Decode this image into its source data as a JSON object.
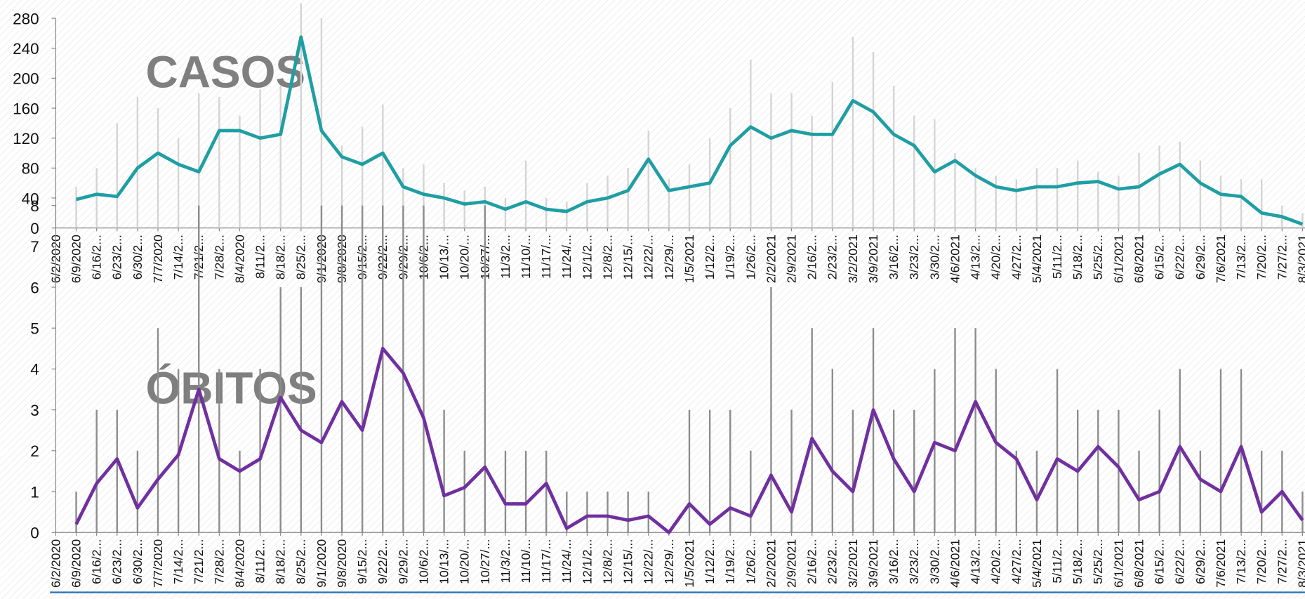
{
  "chart_data": [
    {
      "type": "bar_line",
      "title": "CASOS",
      "categories": [
        "6/2/2020",
        "6/9/2020",
        "6/16/2...",
        "6/23/2...",
        "6/30/2...",
        "7/7/2020",
        "7/14/2...",
        "7/21/2...",
        "7/28/2...",
        "8/4/2020",
        "8/11/2...",
        "8/18/2...",
        "8/25/2...",
        "9/1/2020",
        "9/8/2020",
        "9/15/2...",
        "9/22/2...",
        "9/29/2...",
        "10/6/2...",
        "10/13/...",
        "10/20/...",
        "10/27/...",
        "11/3/2...",
        "11/10/...",
        "11/17/...",
        "11/24/...",
        "12/1/2...",
        "12/8/2...",
        "12/15/...",
        "12/22/...",
        "12/29/...",
        "1/5/2021",
        "1/12/2...",
        "1/19/2...",
        "1/26/2...",
        "2/2/2021",
        "2/9/2021",
        "2/16/2...",
        "2/23/2...",
        "3/2/2021",
        "3/9/2021",
        "3/16/2...",
        "3/23/2...",
        "3/30/2...",
        "4/6/2021",
        "4/13/2...",
        "4/20/2...",
        "4/27/2...",
        "5/4/2021",
        "5/11/2...",
        "5/18/2...",
        "5/25/2...",
        "6/1/2021",
        "6/8/2021",
        "6/15/2...",
        "6/22/2...",
        "6/29/2...",
        "7/6/2021",
        "7/13/2...",
        "7/20/2...",
        "7/27/2...",
        "8/3/2021"
      ],
      "ylim": [
        0,
        280
      ],
      "yticks": [
        0,
        40,
        80,
        120,
        160,
        200,
        240,
        280
      ],
      "series": [
        {
          "type": "bar",
          "color": "#d4d4d4",
          "values": [
            null,
            55,
            80,
            140,
            175,
            160,
            120,
            180,
            175,
            150,
            185,
            190,
            300,
            280,
            110,
            135,
            165,
            80,
            85,
            60,
            50,
            55,
            40,
            90,
            40,
            35,
            60,
            70,
            80,
            130,
            65,
            85,
            120,
            160,
            225,
            180,
            180,
            150,
            195,
            255,
            235,
            190,
            150,
            145,
            100,
            80,
            70,
            65,
            80,
            80,
            90,
            75,
            70,
            100,
            110,
            115,
            90,
            70,
            65,
            65,
            30,
            20
          ]
        },
        {
          "type": "line",
          "color": "#1f9ea3",
          "values": [
            null,
            38,
            45,
            42,
            80,
            100,
            85,
            75,
            130,
            130,
            120,
            125,
            255,
            130,
            95,
            85,
            100,
            55,
            45,
            40,
            32,
            35,
            25,
            35,
            25,
            22,
            35,
            40,
            50,
            92,
            50,
            55,
            60,
            110,
            135,
            120,
            130,
            125,
            125,
            170,
            155,
            125,
            110,
            75,
            90,
            70,
            55,
            50,
            55,
            55,
            60,
            62,
            52,
            55,
            72,
            85,
            60,
            45,
            42,
            20,
            15,
            5
          ]
        }
      ]
    },
    {
      "type": "bar_line",
      "title": "ÓBITOS",
      "categories": [
        "6/2/2020",
        "6/9/2020",
        "6/16/2...",
        "6/23/2...",
        "6/30/2...",
        "7/7/2020",
        "7/14/2...",
        "7/21/2...",
        "7/28/2...",
        "8/4/2020",
        "8/11/2...",
        "8/18/2...",
        "8/25/2...",
        "9/1/2020",
        "9/8/2020",
        "9/15/2...",
        "9/22/2...",
        "9/29/2...",
        "10/6/2...",
        "10/13/...",
        "10/20/...",
        "10/27/...",
        "11/3/2...",
        "11/10/...",
        "11/17/...",
        "11/24/...",
        "12/1/2...",
        "12/8/2...",
        "12/15/...",
        "12/22/...",
        "12/29/...",
        "1/5/2021",
        "1/12/2...",
        "1/19/2...",
        "1/26/2...",
        "2/2/2021",
        "2/9/2021",
        "2/16/2...",
        "2/23/2...",
        "3/2/2021",
        "3/9/2021",
        "3/16/2...",
        "3/23/2...",
        "3/30/2...",
        "4/6/2021",
        "4/13/2...",
        "4/20/2...",
        "4/27/2...",
        "5/4/2021",
        "5/11/2...",
        "5/18/2...",
        "5/25/2...",
        "6/1/2021",
        "6/8/2021",
        "6/15/2...",
        "6/22/2...",
        "6/29/2...",
        "7/6/2021",
        "7/13/2...",
        "7/20/2...",
        "7/27/2...",
        "8/3/2021"
      ],
      "ylim": [
        0,
        8
      ],
      "yticks": [
        0,
        1,
        2,
        3,
        4,
        5,
        6,
        7,
        8
      ],
      "series": [
        {
          "type": "bar",
          "color": "#8c8c8c",
          "values": [
            null,
            1,
            3,
            3,
            2,
            5,
            4,
            8,
            4,
            2,
            4,
            6,
            6,
            8,
            8,
            8,
            8,
            8,
            8,
            3,
            2,
            8,
            2,
            2,
            2,
            1,
            1,
            1,
            1,
            1,
            0,
            3,
            3,
            3,
            2,
            6,
            3,
            5,
            4,
            3,
            5,
            3,
            3,
            4,
            5,
            5,
            4,
            2,
            2,
            4,
            3,
            3,
            3,
            2,
            3,
            4,
            2,
            4,
            4,
            2,
            2,
            1
          ]
        },
        {
          "type": "line",
          "color": "#7030a0",
          "values": [
            null,
            0.2,
            1.2,
            1.8,
            0.6,
            1.3,
            1.9,
            3.5,
            1.8,
            1.5,
            1.8,
            3.3,
            2.5,
            2.2,
            3.2,
            2.5,
            4.5,
            3.9,
            2.8,
            0.9,
            1.1,
            1.6,
            0.7,
            0.7,
            1.2,
            0.1,
            0.4,
            0.4,
            0.3,
            0.4,
            0,
            0.7,
            0.2,
            0.6,
            0.4,
            1.4,
            0.5,
            2.3,
            1.5,
            1.0,
            3.0,
            1.8,
            1.0,
            2.2,
            2.0,
            3.2,
            2.2,
            1.8,
            0.8,
            1.8,
            1.5,
            2.1,
            1.6,
            0.8,
            1.0,
            2.1,
            1.3,
            1.0,
            2.1,
            0.5,
            1.0,
            0.3
          ]
        }
      ]
    }
  ]
}
